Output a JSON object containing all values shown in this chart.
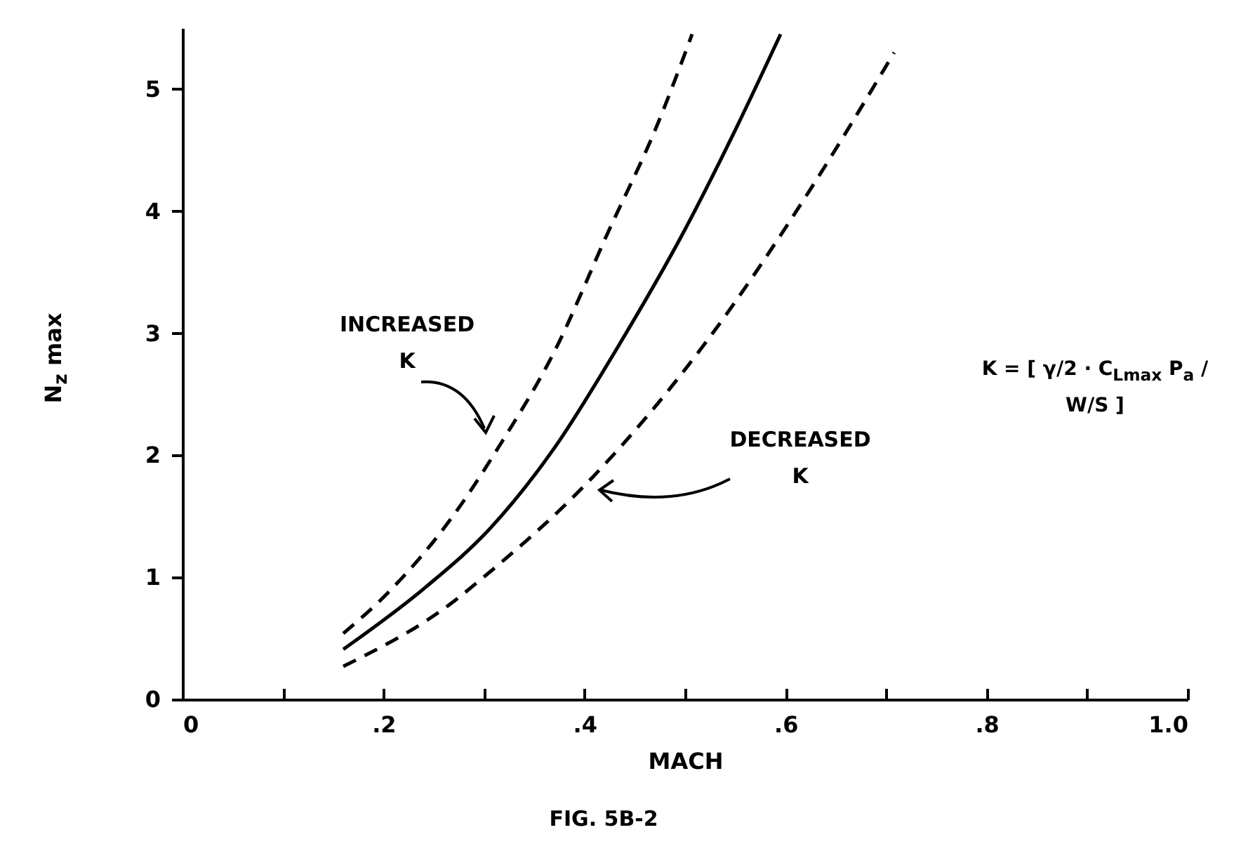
{
  "chart_data": {
    "type": "line",
    "xlabel": "MACH",
    "ylabel": "N$_{z}$ max",
    "xlim": [
      0,
      1.0
    ],
    "ylim": [
      0,
      5.5
    ],
    "xticks": [
      0,
      {
        "value": 0.1,
        "label": null
      },
      {
        "value": 0.2,
        "label": ".2"
      },
      {
        "value": 0.3,
        "label": null
      },
      {
        "value": 0.4,
        "label": ".4"
      },
      {
        "value": 0.5,
        "label": null
      },
      {
        "value": 0.6,
        "label": ".6"
      },
      {
        "value": 0.7,
        "label": null
      },
      {
        "value": 0.8,
        "label": ".8"
      },
      {
        "value": 0.9,
        "label": null
      },
      {
        "value": 1.0,
        "label": "1.0"
      }
    ],
    "yticks": [
      0,
      1,
      2,
      3,
      4,
      5
    ],
    "grid": false,
    "marker": "none",
    "series": [
      {
        "color": "#000000",
        "line_style": "dashed",
        "x": [
          0.16,
          0.204,
          0.268,
          0.317,
          0.37,
          0.423,
          0.472,
          0.507
        ],
        "values": [
          0.54,
          0.87,
          1.49,
          2.1,
          2.85,
          3.82,
          4.7,
          5.45
        ]
      },
      {
        "color": "#000000",
        "line_style": "solid",
        "x": [
          0.16,
          0.242,
          0.306,
          0.37,
          0.434,
          0.498,
          0.552,
          0.595
        ],
        "values": [
          0.41,
          0.92,
          1.4,
          2.06,
          2.9,
          3.82,
          4.7,
          5.45
        ]
      },
      {
        "color": "#000000",
        "line_style": "dashed",
        "x": [
          0.16,
          0.271,
          0.295,
          0.408,
          0.522,
          0.624,
          0.708
        ],
        "values": [
          0.27,
          0.81,
          0.97,
          1.82,
          2.94,
          4.17,
          5.3
        ]
      }
    ],
    "annotations": [
      "INCREASED\nK",
      "DECREASED\nK",
      "K = [ γ/2 · C$_{Lmax}$ P$_{a}$ / W/S ]",
      "FIG. 5B-2"
    ]
  }
}
